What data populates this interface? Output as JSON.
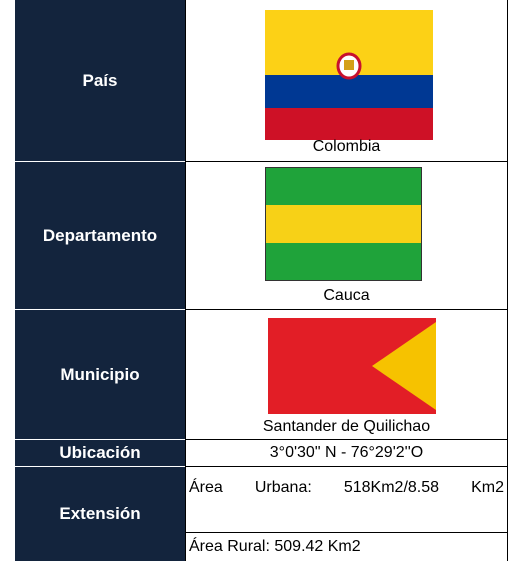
{
  "table": {
    "rows": [
      {
        "label": "País",
        "value": "Colombia"
      },
      {
        "label": "Departamento",
        "value": "Cauca"
      },
      {
        "label": "Municipio",
        "value": "Santander de Quilichao"
      },
      {
        "label": "Ubicación",
        "value": "3°0'30\" N - 76°29'2''O"
      },
      {
        "label": "Extensión",
        "values": [
          "Área Urbana: 518Km2/8.58 Km2",
          "Área Rural: 509.42 Km2"
        ]
      }
    ]
  }
}
